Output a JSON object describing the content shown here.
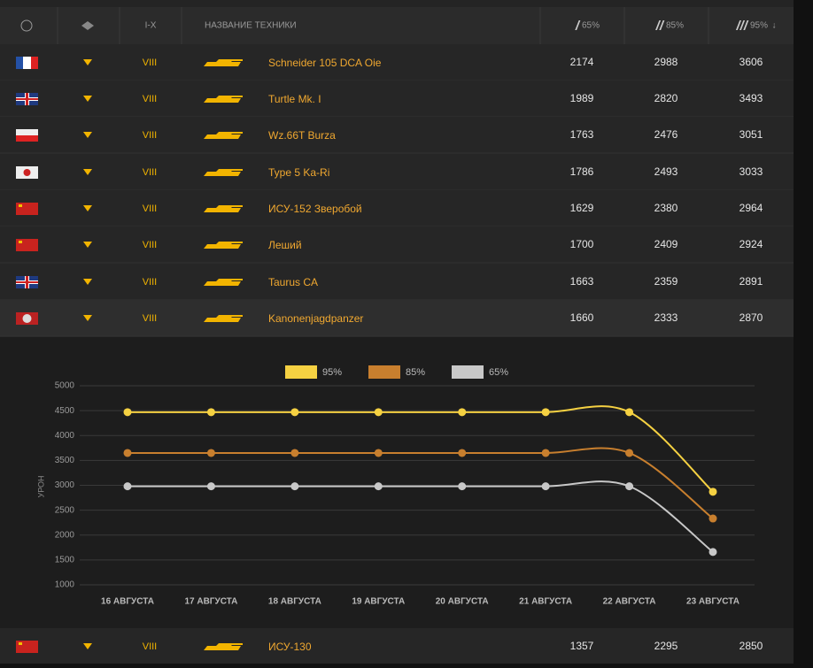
{
  "header": {
    "tier": "I-X",
    "name": "НАЗВАНИЕ ТЕХНИКИ",
    "columns": [
      {
        "mark": "/",
        "label": "65%"
      },
      {
        "mark": "//",
        "label": "85%"
      },
      {
        "mark": "///",
        "label": "95%"
      }
    ],
    "sort": "↓"
  },
  "table": {
    "rows": [
      [
        "VIII",
        "Schneider 105 DCA Oie",
        "2174",
        "2988",
        "3606"
      ],
      [
        "VIII",
        "Turtle Mk. I",
        "1989",
        "2820",
        "3493"
      ],
      [
        "VIII",
        "Wz.66T Burza",
        "1763",
        "2476",
        "3051"
      ],
      [
        "VIII",
        "Type 5 Ka-Ri",
        "1786",
        "2493",
        "3033"
      ],
      [
        "VIII",
        "ИСУ-152 Зверобой",
        "1629",
        "2380",
        "2964"
      ],
      [
        "VIII",
        "Леший",
        "1700",
        "2409",
        "2924"
      ],
      [
        "VIII",
        "Taurus CA",
        "1663",
        "2359",
        "2891"
      ],
      [
        "VIII",
        "Kanonenjagdpanzer",
        "1660",
        "2333",
        "2870"
      ],
      [
        "VIII",
        "ИСУ-130",
        "1357",
        "2295",
        "2850"
      ]
    ]
  },
  "chart_data": {
    "type": "line",
    "y_label": "УРОН",
    "categories": [
      "16 АВГУСТА",
      "17 АВГУСТА",
      "18 АВГУСТА",
      "19 АВГУСТА",
      "20 АВГУСТА",
      "21 АВГУСТА",
      "22 АВГУСТА",
      "23 АВГУСТА"
    ],
    "series": [
      {
        "name": "95%",
        "color": "#f5d142",
        "values": [
          4470,
          4470,
          4470,
          4470,
          4470,
          4470,
          4470,
          2870
        ]
      },
      {
        "name": "85%",
        "color": "#c87f2e",
        "values": [
          3650,
          3650,
          3650,
          3650,
          3650,
          3650,
          3650,
          2333
        ]
      },
      {
        "name": "65%",
        "color": "#c8c8c8",
        "values": [
          2980,
          2980,
          2980,
          2980,
          2980,
          2980,
          2980,
          1660
        ]
      }
    ],
    "ylim": [
      1000,
      5000
    ],
    "yticks": [
      1000,
      1500,
      2000,
      2500,
      3000,
      3500,
      4000,
      4500,
      5000
    ],
    "grid": true
  }
}
